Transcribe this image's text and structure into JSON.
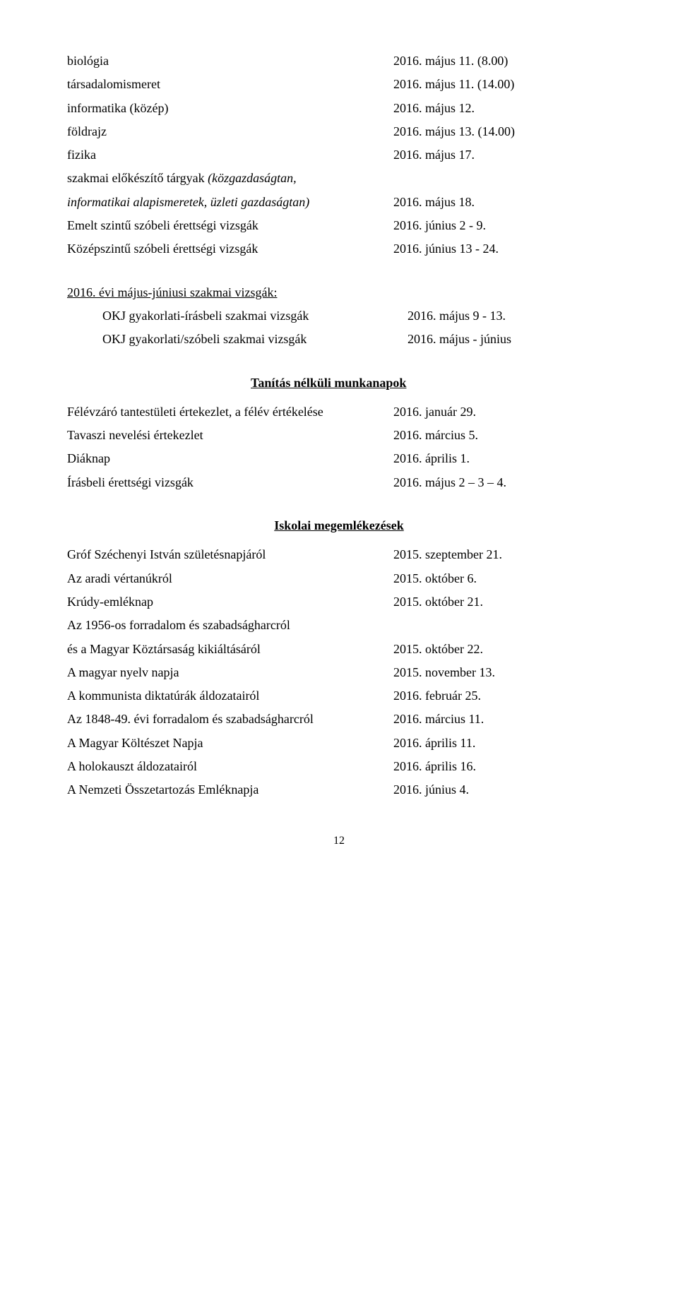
{
  "exams1": [
    {
      "l": "biológia",
      "r": "2016. május 11. (8.00)"
    },
    {
      "l": "társadalomismeret",
      "r": "2016. május 11. (14.00)"
    },
    {
      "l": "informatika (közép)",
      "r": "2016. május 12."
    },
    {
      "l": "földrajz",
      "r": "2016. május 13. (14.00)"
    },
    {
      "l": "fizika",
      "r": "2016. május 17."
    }
  ],
  "prep_line1": "szakmai előkészítő tárgyak ",
  "prep_line1_italic": "(közgazdaságtan,",
  "prep_line2_italic": "informatikai alapismeretek, üzleti gazdaságtan)",
  "prep_date": "2016. május 18.",
  "exams2": [
    {
      "l": "Emelt szintű szóbeli érettségi vizsgák",
      "r": "2016. június 2 - 9."
    },
    {
      "l": "Középszintű szóbeli érettségi vizsgák",
      "r": "2016. június 13 - 24."
    }
  ],
  "szakmai_heading": "2016. évi május-júniusi szakmai vizsgák:",
  "szakmai_rows": [
    {
      "l": "OKJ gyakorlati-írásbeli szakmai vizsgák",
      "r": "2016. május 9 - 13."
    },
    {
      "l": "OKJ gyakorlati/szóbeli szakmai vizsgák",
      "r": "2016. május - június"
    }
  ],
  "heading_tanitas": "Tanítás nélküli munkanapok",
  "tanitas_rows": [
    {
      "l": "Félévzáró tantestületi értekezlet, a félév értékelése",
      "r": "2016. január 29."
    },
    {
      "l": "Tavaszi nevelési értekezlet",
      "r": "2016. március 5."
    },
    {
      "l": "Diáknap",
      "r": "2016. április 1."
    },
    {
      "l": "Írásbeli érettségi vizsgák",
      "r": "2016. május 2 – 3 – 4."
    }
  ],
  "heading_iskolai": "Iskolai megemlékezések",
  "iskolai_rows": [
    {
      "l": "Gróf Széchenyi István születésnapjáról",
      "r": "2015. szeptember 21."
    },
    {
      "l": "Az aradi vértanúkról",
      "r": "2015. október 6."
    },
    {
      "l": "Krúdy-emléknap",
      "r": "2015. október 21."
    },
    {
      "l": "Az 1956-os forradalom és szabadságharcról",
      "r": ""
    },
    {
      "l": "és a Magyar Köztársaság kikiáltásáról",
      "r": "2015. október 22."
    },
    {
      "l": "A magyar nyelv napja",
      "r": "2015. november 13."
    },
    {
      "l": "A kommunista diktatúrák áldozatairól",
      "r": "2016. február 25."
    },
    {
      "l": "Az 1848-49. évi forradalom és szabadságharcról",
      "r": "2016. március 11."
    },
    {
      "l": "A Magyar Költészet Napja",
      "r": "2016. április 11."
    },
    {
      "l": "A holokauszt áldozatairól",
      "r": "2016. április 16."
    },
    {
      "l": "A Nemzeti Összetartozás Emléknapja",
      "r": "2016. június 4."
    }
  ],
  "page_number": "12"
}
